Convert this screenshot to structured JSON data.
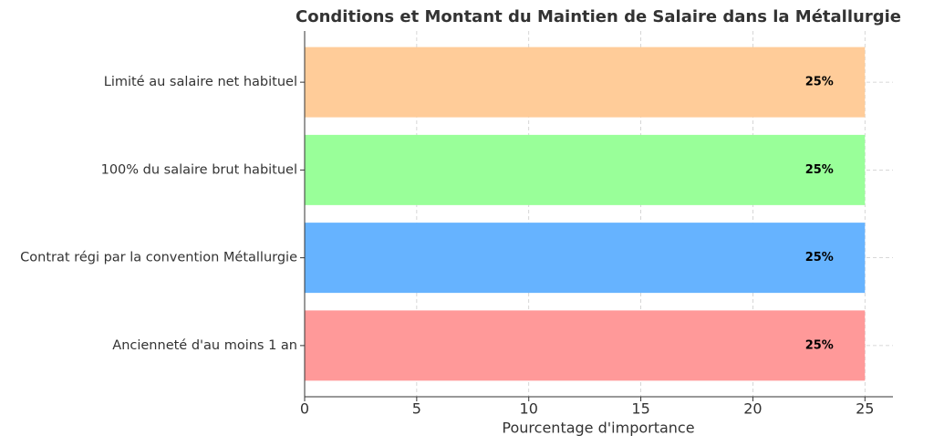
{
  "chart_data": {
    "type": "barh",
    "title": "Conditions et Montant du Maintien de Salaire dans la Métallurgie",
    "xlabel": "Pourcentage d'importance",
    "categories": [
      "Ancienneté d'au moins 1 an",
      "Contrat régi par la convention Métallurgie",
      "100% du salaire brut habituel",
      "Limité au salaire net habituel"
    ],
    "values": [
      25,
      25,
      25,
      25
    ],
    "value_labels": [
      "25%",
      "25%",
      "25%",
      "25%"
    ],
    "colors": [
      "#ff9999",
      "#66b3ff",
      "#99ff99",
      "#ffcc99"
    ],
    "xlim": [
      0,
      26.25
    ],
    "xticks": [
      0,
      5,
      10,
      15,
      20,
      25
    ],
    "grid": true
  }
}
